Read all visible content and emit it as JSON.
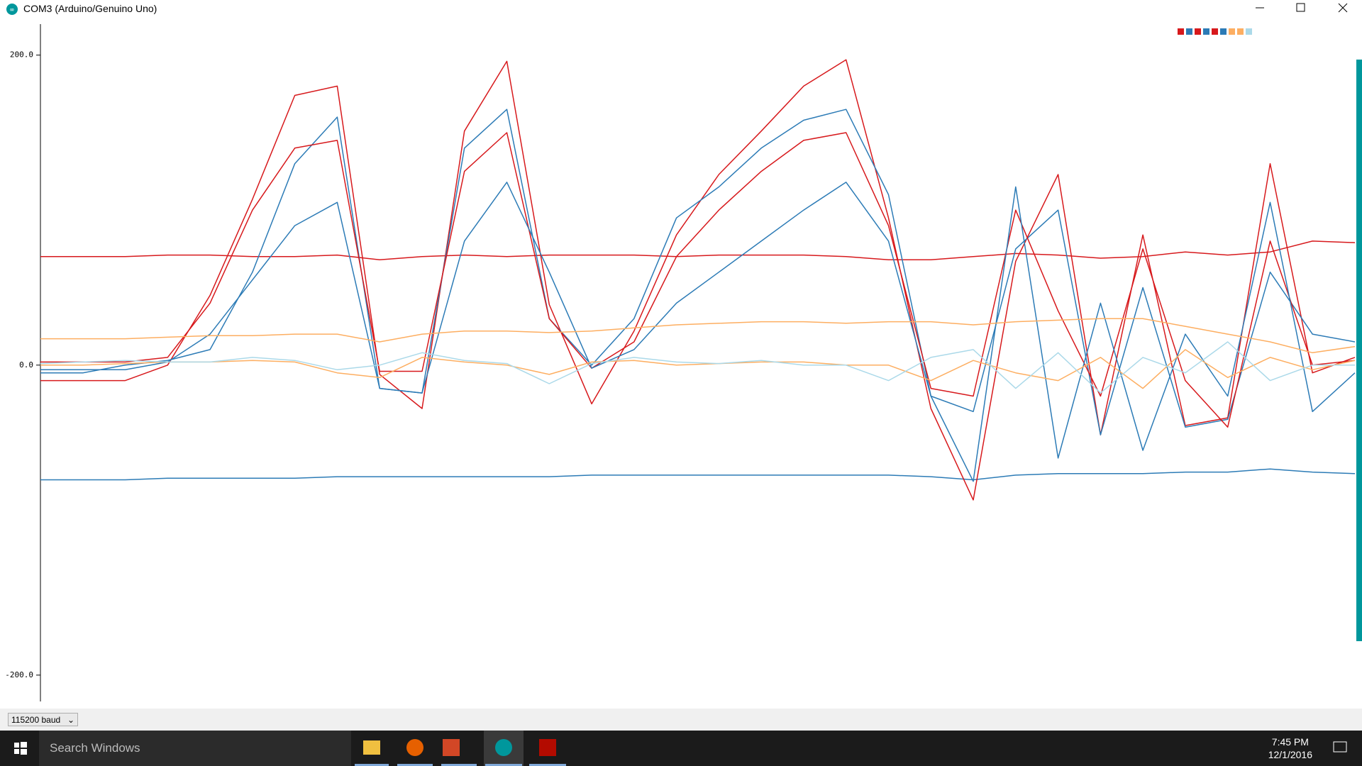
{
  "window": {
    "title": "COM3 (Arduino/Genuino Uno)"
  },
  "chart_data": {
    "type": "line",
    "ylim": [
      -217,
      220
    ],
    "yticks": [
      {
        "value": 200,
        "label": "200.0"
      },
      {
        "value": 0,
        "label": "0.0"
      },
      {
        "value": -200,
        "label": "-200.0"
      }
    ],
    "series": [
      {
        "color": "#d7191c",
        "values": [
          70,
          70,
          70,
          71,
          71,
          70,
          70,
          71,
          68,
          70,
          71,
          70,
          71,
          71,
          71,
          70,
          71,
          71,
          71,
          70,
          68,
          68,
          70,
          72,
          71,
          69,
          70,
          73,
          71,
          73,
          80,
          79
        ]
      },
      {
        "color": "#2c7bb6",
        "values": [
          -74,
          -74,
          -74,
          -73,
          -73,
          -73,
          -73,
          -72,
          -72,
          -72,
          -72,
          -72,
          -72,
          -71,
          -71,
          -71,
          -71,
          -71,
          -71,
          -71,
          -71,
          -72,
          -74,
          -71,
          -70,
          -70,
          -70,
          -69,
          -69,
          -67,
          -69,
          -70
        ]
      },
      {
        "color": "#d7191c",
        "values": [
          -10,
          -10,
          -10,
          0,
          45,
          107,
          174,
          180,
          -6,
          -28,
          151,
          196,
          39,
          -25,
          22,
          84,
          123,
          151,
          180,
          197,
          95,
          -28,
          -87,
          67,
          123,
          -45,
          84,
          -39,
          -34,
          130,
          -5,
          5
        ]
      },
      {
        "color": "#2c7bb6",
        "values": [
          -5,
          -5,
          0,
          3,
          10,
          60,
          130,
          160,
          -15,
          -18,
          140,
          165,
          30,
          0,
          30,
          95,
          115,
          140,
          158,
          165,
          110,
          -20,
          -30,
          75,
          100,
          -45,
          50,
          -40,
          -35,
          60,
          20,
          15
        ]
      },
      {
        "color": "#d7191c",
        "values": [
          2,
          2,
          2,
          5,
          40,
          100,
          140,
          145,
          -4,
          -4,
          125,
          150,
          30,
          -2,
          15,
          70,
          100,
          125,
          145,
          150,
          90,
          -15,
          -20,
          100,
          35,
          -20,
          75,
          -10,
          -40,
          80,
          0,
          3
        ]
      },
      {
        "color": "#2c7bb6",
        "values": [
          -3,
          -3,
          -3,
          2,
          20,
          55,
          90,
          105,
          -15,
          -18,
          80,
          118,
          60,
          -2,
          10,
          40,
          60,
          80,
          100,
          118,
          80,
          -20,
          -75,
          115,
          -60,
          40,
          -55,
          20,
          -20,
          105,
          -30,
          -5
        ]
      },
      {
        "color": "#fdae61",
        "values": [
          17,
          17,
          17,
          18,
          19,
          19,
          20,
          20,
          15,
          20,
          22,
          22,
          21,
          22,
          24,
          26,
          27,
          28,
          28,
          27,
          28,
          28,
          26,
          28,
          29,
          30,
          30,
          25,
          20,
          15,
          8,
          12
        ]
      },
      {
        "color": "#fdae61",
        "values": [
          0,
          0,
          1,
          2,
          2,
          3,
          2,
          -5,
          -8,
          5,
          2,
          0,
          -6,
          2,
          3,
          0,
          1,
          2,
          2,
          0,
          0,
          -10,
          3,
          -5,
          -10,
          5,
          -15,
          10,
          -8,
          5,
          -3,
          3
        ]
      },
      {
        "color": "#abd9e9",
        "values": [
          1,
          2,
          3,
          2,
          2,
          5,
          3,
          -3,
          0,
          8,
          3,
          1,
          -12,
          1,
          5,
          2,
          1,
          3,
          0,
          0,
          -10,
          5,
          10,
          -15,
          8,
          -18,
          5,
          -5,
          15,
          -10,
          0,
          0
        ]
      }
    ]
  },
  "baud": "115200 baud",
  "taskbar": {
    "search": "Search Windows",
    "time": "7:45 PM",
    "date": "12/1/2016"
  }
}
